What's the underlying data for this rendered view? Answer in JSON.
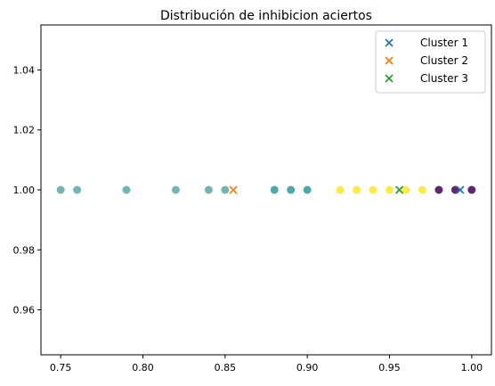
{
  "chart_data": {
    "type": "scatter",
    "title": "Distribución de inhibicion aciertos",
    "xlabel": "",
    "ylabel": "",
    "xlim": [
      0.738,
      1.012
    ],
    "ylim": [
      0.945,
      1.055
    ],
    "x_ticks": [
      0.75,
      0.8,
      0.85,
      0.9,
      0.95,
      1.0
    ],
    "x_tick_labels": [
      "0.75",
      "0.80",
      "0.85",
      "0.90",
      "0.95",
      "1.00"
    ],
    "y_ticks": [
      0.96,
      0.98,
      1.0,
      1.02,
      1.04
    ],
    "y_tick_labels": [
      "0.96",
      "0.98",
      "1.00",
      "1.02",
      "1.04"
    ],
    "grid": false,
    "legend_position": "top-right",
    "points": [
      {
        "x": 0.75,
        "y": 1.0,
        "color": "#5aa8a8"
      },
      {
        "x": 0.76,
        "y": 1.0,
        "color": "#5aa8a8"
      },
      {
        "x": 0.79,
        "y": 1.0,
        "color": "#5aa8a8"
      },
      {
        "x": 0.82,
        "y": 1.0,
        "color": "#5aa8a8"
      },
      {
        "x": 0.84,
        "y": 1.0,
        "color": "#5aa8a8"
      },
      {
        "x": 0.85,
        "y": 1.0,
        "color": "#5aa8a8"
      },
      {
        "x": 0.88,
        "y": 1.0,
        "color": "#2a9b9b"
      },
      {
        "x": 0.89,
        "y": 1.0,
        "color": "#2a9b9b"
      },
      {
        "x": 0.9,
        "y": 1.0,
        "color": "#2a9b9b"
      },
      {
        "x": 0.92,
        "y": 1.0,
        "color": "#fde725"
      },
      {
        "x": 0.93,
        "y": 1.0,
        "color": "#fde725"
      },
      {
        "x": 0.94,
        "y": 1.0,
        "color": "#fde725"
      },
      {
        "x": 0.95,
        "y": 1.0,
        "color": "#fde725"
      },
      {
        "x": 0.96,
        "y": 1.0,
        "color": "#fde725"
      },
      {
        "x": 0.97,
        "y": 1.0,
        "color": "#fde725"
      },
      {
        "x": 0.98,
        "y": 1.0,
        "color": "#440154"
      },
      {
        "x": 0.99,
        "y": 1.0,
        "color": "#440154"
      },
      {
        "x": 1.0,
        "y": 1.0,
        "color": "#440154"
      }
    ],
    "centroids": [
      {
        "name": "Cluster 1",
        "x": 0.993,
        "y": 1.0,
        "color": "#1f77b4"
      },
      {
        "name": "Cluster 2",
        "x": 0.855,
        "y": 1.0,
        "color": "#ff7f0e"
      },
      {
        "name": "Cluster 3",
        "x": 0.956,
        "y": 1.0,
        "color": "#2ca02c"
      }
    ]
  }
}
